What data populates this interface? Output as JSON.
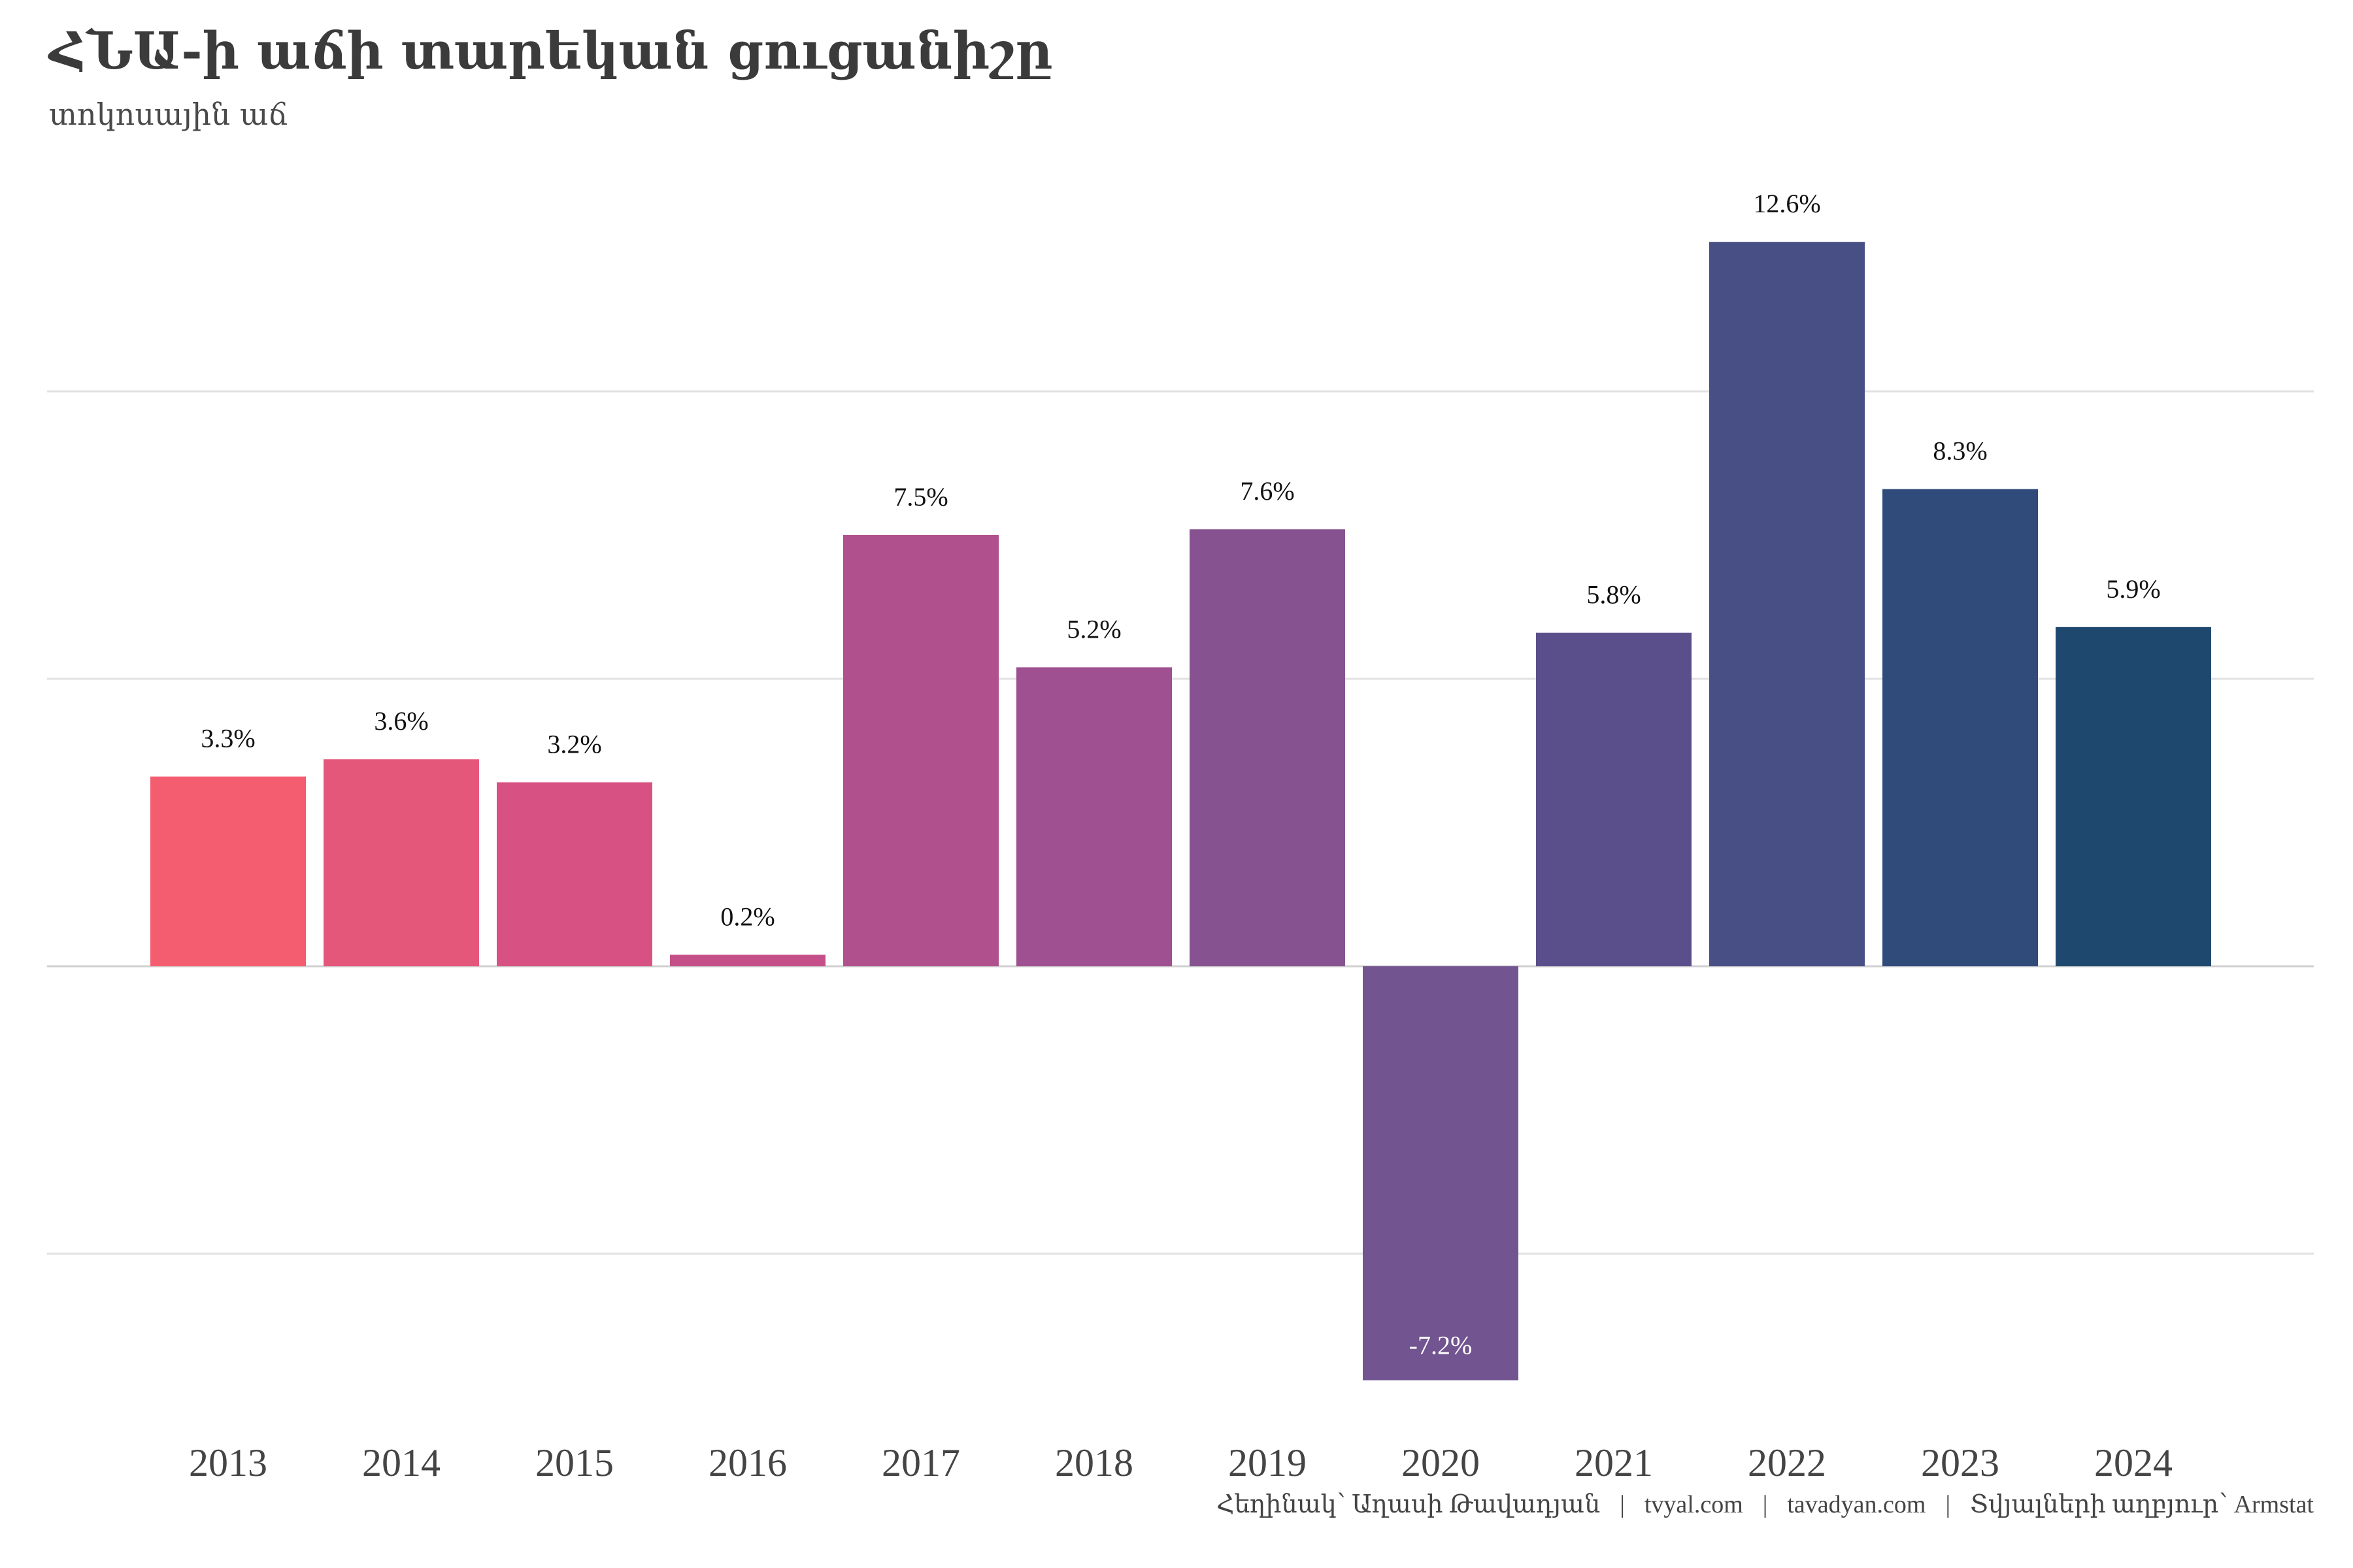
{
  "header": {
    "title": "ՀՆԱ-ի աճի տարեկան ցուցանիշը",
    "subtitle": "տոկոսային աճ"
  },
  "caption": {
    "parts": [
      "Հեղինակ՝ Աղասի Թավադյան",
      "tvyal.com",
      "tavadyan.com",
      "Տվյալների աղբյուր՝ Armstat"
    ],
    "separator": "|"
  },
  "chart_data": {
    "type": "bar",
    "title": "ՀՆԱ-ի աճի տարեկան ցուցանիշը",
    "subtitle": "տոկոսային աճ",
    "xlabel": "",
    "ylabel": "",
    "categories": [
      "2013",
      "2014",
      "2015",
      "2016",
      "2017",
      "2018",
      "2019",
      "2020",
      "2021",
      "2022",
      "2023",
      "2024"
    ],
    "values": [
      3.3,
      3.6,
      3.2,
      0.2,
      7.5,
      5.2,
      7.6,
      -7.2,
      5.8,
      12.6,
      8.3,
      5.9
    ],
    "labels": [
      "3.3%",
      "3.6%",
      "3.2%",
      "0.2%",
      "7.5%",
      "5.2%",
      "7.6%",
      "-7.2%",
      "5.8%",
      "12.6%",
      "8.3%",
      "5.9%"
    ],
    "colors": [
      "#F45D6F",
      "#E5577A",
      "#D75283",
      "#C55089",
      "#B0518D",
      "#9E5090",
      "#865290",
      "#715490",
      "#5B4F8B",
      "#474F85",
      "#304B7A",
      "#1F486F"
    ],
    "ylim": [
      -7.5,
      13.5
    ],
    "gridlines": [
      -5,
      0,
      5,
      10
    ],
    "grid": true,
    "y_tick_labels_shown": false,
    "legend": "none"
  }
}
